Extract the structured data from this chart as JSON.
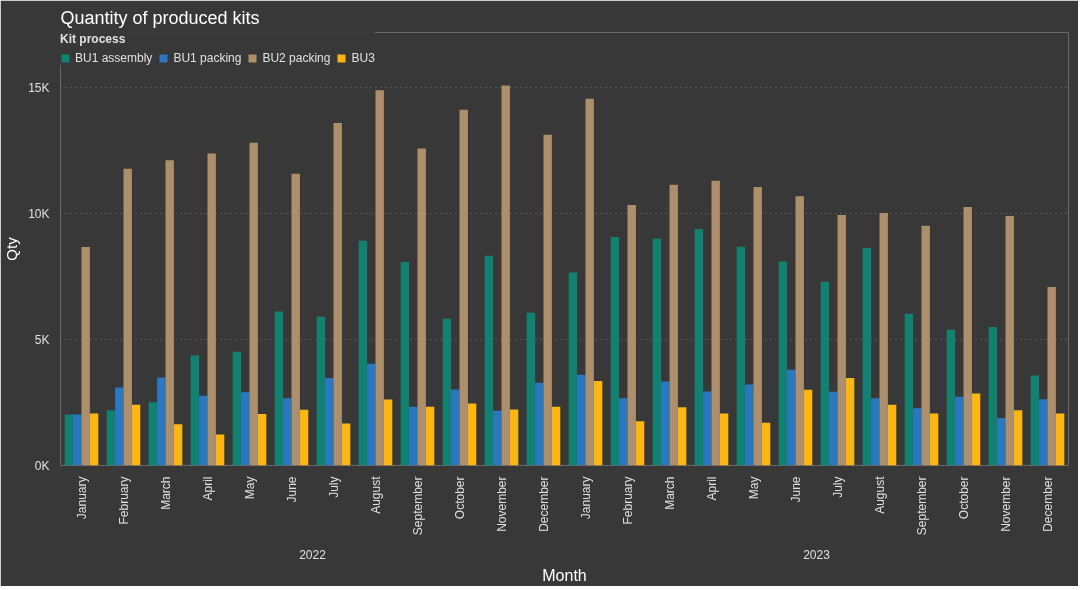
{
  "chart_data": {
    "type": "bar",
    "title": "Quantity of produced kits",
    "xlabel": "Month",
    "ylabel": "Qty",
    "legend_title": "Kit process",
    "legend": "top left",
    "grid": "y",
    "categories": [
      "January",
      "February",
      "March",
      "April",
      "May",
      "June",
      "July",
      "August",
      "September",
      "October",
      "November",
      "December",
      "January",
      "February",
      "March",
      "April",
      "May",
      "June",
      "July",
      "August",
      "September",
      "October",
      "November",
      "December"
    ],
    "annotations": [
      "2022",
      "2023"
    ],
    "ylim": [
      0,
      17200
    ],
    "yticks": [
      {
        "value": 0,
        "label": "0K"
      },
      {
        "value": 5000,
        "label": "5K"
      },
      {
        "value": 10000,
        "label": "10K"
      },
      {
        "value": 15000,
        "label": "15K"
      }
    ],
    "series": [
      {
        "name": "BU1 assembly",
        "color": "#118271",
        "values": [
          2030,
          2190,
          2510,
          4370,
          4520,
          6120,
          5910,
          8930,
          8080,
          5830,
          8330,
          6070,
          7670,
          9080,
          9010,
          9390,
          8690,
          8100,
          7300,
          8640,
          6030,
          5390,
          5500,
          3580
        ]
      },
      {
        "name": "BU1 packing",
        "color": "#2a78c0",
        "values": [
          2030,
          3100,
          3500,
          2770,
          2910,
          2670,
          3480,
          4040,
          2330,
          3020,
          2170,
          3290,
          3600,
          2670,
          3340,
          2940,
          3220,
          3800,
          2930,
          2670,
          2270,
          2730,
          1890,
          2630
        ]
      },
      {
        "name": "BU2 packing",
        "color": "#ad8f6b",
        "values": [
          8680,
          11790,
          12130,
          12390,
          12820,
          11590,
          13610,
          14910,
          12590,
          14130,
          15090,
          13140,
          14570,
          10350,
          11150,
          11310,
          11060,
          10700,
          9950,
          10030,
          9520,
          10270,
          9910,
          7090
        ]
      },
      {
        "name": "BU3",
        "color": "#fbb614",
        "values": [
          2070,
          2410,
          1640,
          1230,
          2050,
          2210,
          1670,
          2620,
          2330,
          2460,
          2220,
          2330,
          3360,
          1760,
          2310,
          2070,
          1700,
          3010,
          3480,
          2410,
          2070,
          2860,
          2190,
          2070
        ]
      }
    ]
  }
}
